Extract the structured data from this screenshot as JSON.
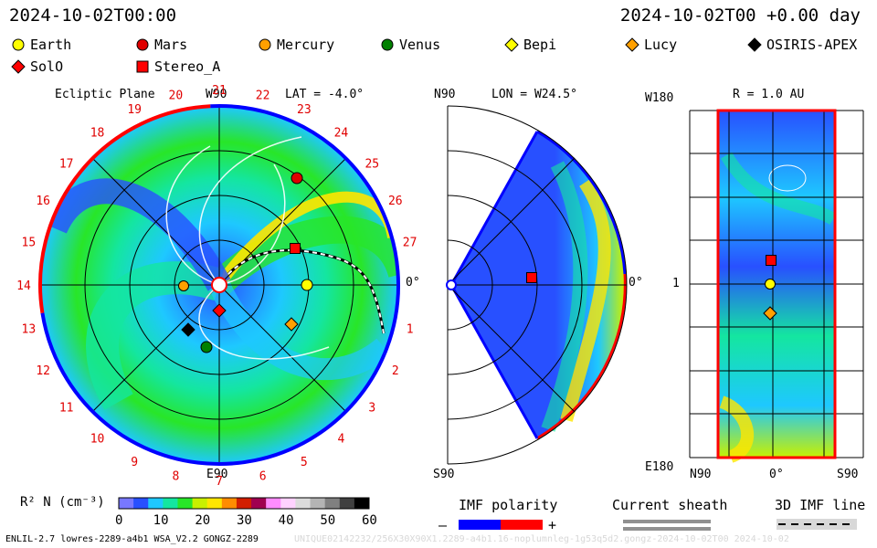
{
  "header": {
    "datetime": "2024-10-02T00:00",
    "offset": "2024-10-02T00 +0.00 day"
  },
  "legend": [
    {
      "name": "Earth",
      "shape": "circle",
      "color": "#ffff00"
    },
    {
      "name": "Mars",
      "shape": "circle",
      "color": "#e00000"
    },
    {
      "name": "Mercury",
      "shape": "circle",
      "color": "#ffa000"
    },
    {
      "name": "Venus",
      "shape": "circle",
      "color": "#008000"
    },
    {
      "name": "Bepi",
      "shape": "diamond",
      "color": "#ffff00"
    },
    {
      "name": "Lucy",
      "shape": "diamond",
      "color": "#ffa000"
    },
    {
      "name": "OSIRIS-APEX",
      "shape": "diamond",
      "color": "#000000"
    },
    {
      "name": "SolO",
      "shape": "diamond",
      "color": "#ff0000"
    },
    {
      "name": "Stereo_A",
      "shape": "square",
      "color": "#ff0000"
    }
  ],
  "panels": {
    "ecliptic": {
      "title": "Ecliptic Plane",
      "top_label": "W90",
      "bottom_label": "E90",
      "right_label": "0°",
      "lat_label": "LAT = -4.0°",
      "carrington": [
        "1",
        "2",
        "3",
        "4",
        "5",
        "6",
        "7",
        "8",
        "9",
        "10",
        "11",
        "12",
        "13",
        "14",
        "15",
        "16",
        "17",
        "18",
        "19",
        "20",
        "21",
        "22",
        "23",
        "24",
        "25",
        "26",
        "27"
      ]
    },
    "meridional": {
      "lon_label": "LON = W24.5°",
      "top_label": "N90",
      "bottom_label": "S90",
      "right_label": "0°"
    },
    "radial": {
      "r_label": "R = 1.0 AU",
      "top_label": "W180",
      "bottom_label": "E180",
      "mid_label": "1",
      "x_left": "N90",
      "x_mid": "0°",
      "x_right": "S90"
    }
  },
  "colorbar": {
    "label": "R² N (cm⁻³)",
    "ticks": [
      "0",
      "10",
      "20",
      "30",
      "40",
      "50",
      "60"
    ],
    "colors": [
      "#7878ff",
      "#2850ff",
      "#1ec8ff",
      "#14e6a0",
      "#28e628",
      "#c8f000",
      "#ffe600",
      "#ff8c00",
      "#d21e00",
      "#a00050",
      "#ff8cff",
      "#ffd2ff",
      "#dcdcdc",
      "#b4b4b4",
      "#808080",
      "#404040",
      "#000000"
    ]
  },
  "imf": {
    "title": "IMF polarity",
    "minus": "–",
    "plus": "+",
    "neg_color": "#0000ff",
    "pos_color": "#ff0000"
  },
  "current_sheath": {
    "title": "Current sheath"
  },
  "imf_line": {
    "title": "3D IMF line"
  },
  "footer": {
    "left": "ENLIL-2.7 lowres-2289-a4b1 WSA_V2.2 GONGZ-2289",
    "right": "UNIQUE02142232/256X30X90X1.2289-a4b1.16-noplumnleg-1g53q5d2.gongz-2024-10-02T00 2024-10-02"
  }
}
